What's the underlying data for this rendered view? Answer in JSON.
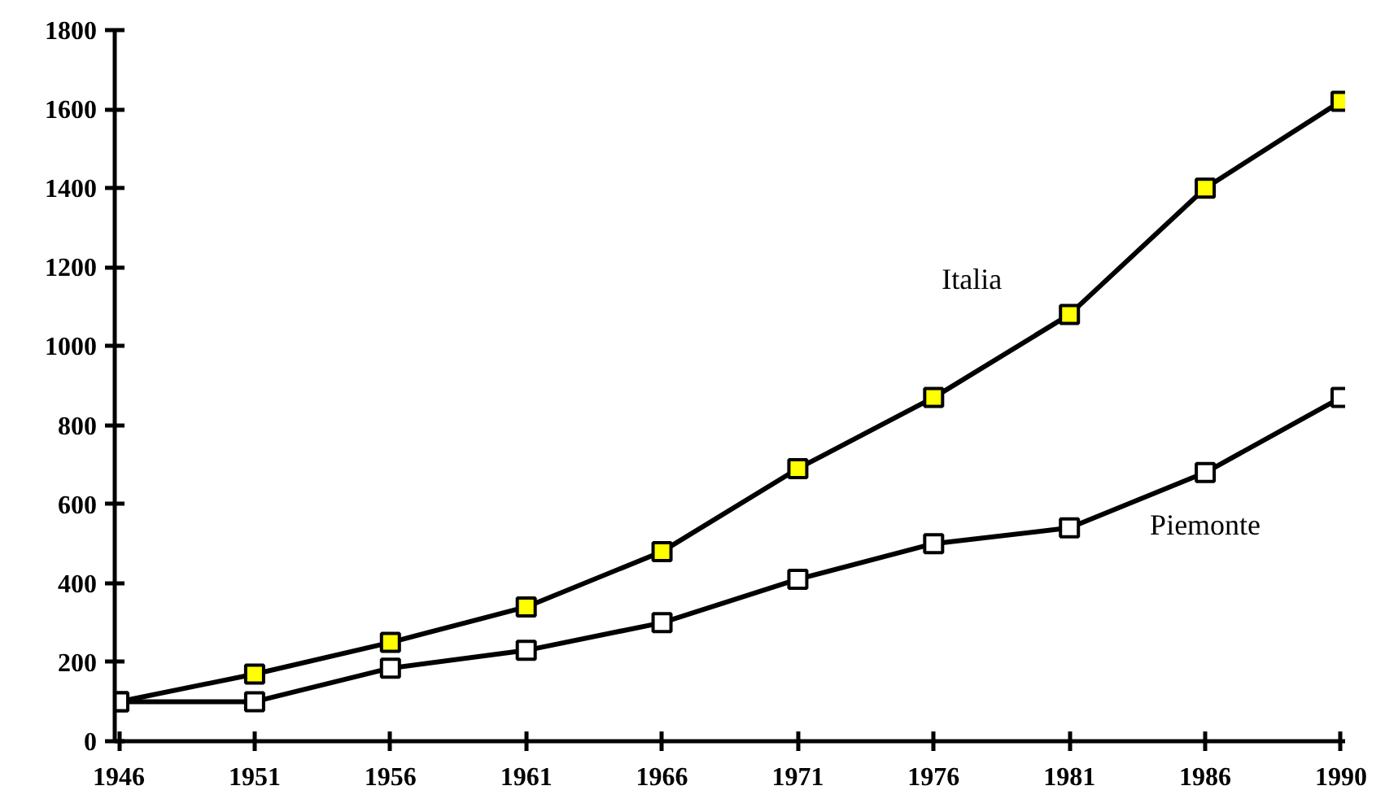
{
  "chart_data": {
    "type": "line",
    "categories": [
      "1946",
      "1951",
      "1956",
      "1961",
      "1966",
      "1971",
      "1976",
      "1981",
      "1986",
      "1990"
    ],
    "series": [
      {
        "name": "Italia",
        "color": "#ffff00",
        "values": [
          100,
          170,
          250,
          340,
          480,
          690,
          870,
          1080,
          1400,
          1620
        ]
      },
      {
        "name": "Piemonte",
        "color": "#ffffff",
        "values": [
          100,
          100,
          185,
          230,
          300,
          410,
          500,
          540,
          680,
          870
        ]
      }
    ],
    "ylim": [
      0,
      1800
    ],
    "yticks": [
      0,
      200,
      400,
      600,
      800,
      1000,
      1200,
      1400,
      1600,
      1800
    ],
    "grid": false,
    "legend": false,
    "marker": "square",
    "line_style": "solid"
  }
}
